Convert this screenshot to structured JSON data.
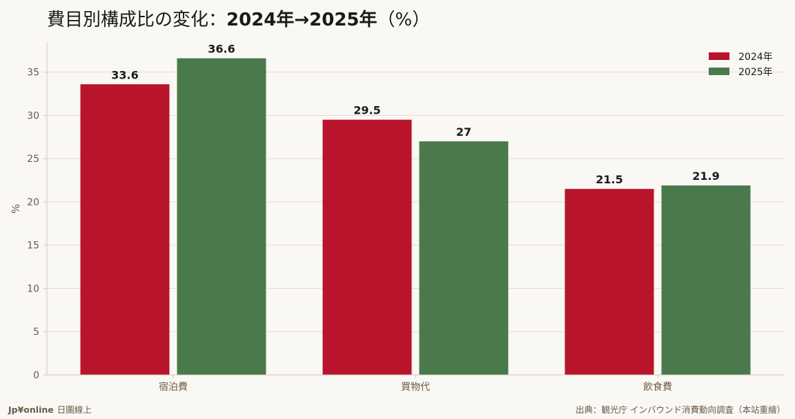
{
  "title": {
    "main": "費目別構成比の変化：",
    "emphasis": "2024年→2025年",
    "suffix": "（%）"
  },
  "footer": {
    "brand": "Jp¥online",
    "brand_sub": "日圖線上",
    "source": "出典：観光庁 インバウンド消費動向調査（本站重繪）"
  },
  "colors": {
    "background": "#faf8f4",
    "series_2024": "#b8142c",
    "series_2025": "#4a7a4c",
    "grid": "#e2ddd4",
    "axis": "#cfc8bd"
  },
  "chart_data": {
    "type": "bar",
    "categories": [
      "宿泊費",
      "買物代",
      "飲食費"
    ],
    "series": [
      {
        "name": "2024年",
        "values": [
          33.6,
          29.5,
          21.5
        ],
        "color": "#b8142c"
      },
      {
        "name": "2025年",
        "values": [
          36.6,
          27,
          21.9
        ],
        "color": "#4a7a4c"
      }
    ],
    "value_labels": [
      [
        "33.6",
        "29.5",
        "21.5"
      ],
      [
        "36.6",
        "27",
        "21.9"
      ]
    ],
    "xlabel": "",
    "ylabel": "%",
    "ylim": [
      0,
      38.4
    ],
    "yticks": [
      0,
      5,
      10,
      15,
      20,
      25,
      30,
      35
    ],
    "grid": true,
    "legend_position": "top-right"
  }
}
